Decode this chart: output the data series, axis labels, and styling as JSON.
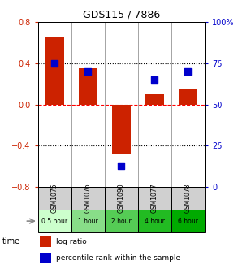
{
  "title": "GDS115 / 7886",
  "samples": [
    "GSM1075",
    "GSM1076",
    "GSM1090",
    "GSM1077",
    "GSM1078"
  ],
  "time_labels": [
    "0.5 hour",
    "1 hour",
    "2 hour",
    "4 hour",
    "6 hour"
  ],
  "log_ratios": [
    0.65,
    0.35,
    -0.48,
    0.1,
    0.15
  ],
  "percentile_ranks": [
    75,
    70,
    13,
    65,
    70
  ],
  "bar_color": "#cc2200",
  "dot_color": "#0000cc",
  "ylim_left": [
    -0.8,
    0.8
  ],
  "ylim_right": [
    0,
    100
  ],
  "yticks_left": [
    -0.8,
    -0.4,
    0,
    0.4,
    0.8
  ],
  "yticks_right": [
    0,
    25,
    50,
    75,
    100
  ],
  "hlines_dotted": [
    0.4,
    -0.4
  ],
  "hline_dashed": 0,
  "time_colors": [
    "#ccffcc",
    "#88dd88",
    "#55cc55",
    "#22bb22",
    "#00aa00"
  ],
  "figsize": [
    2.93,
    3.36
  ],
  "dpi": 100
}
